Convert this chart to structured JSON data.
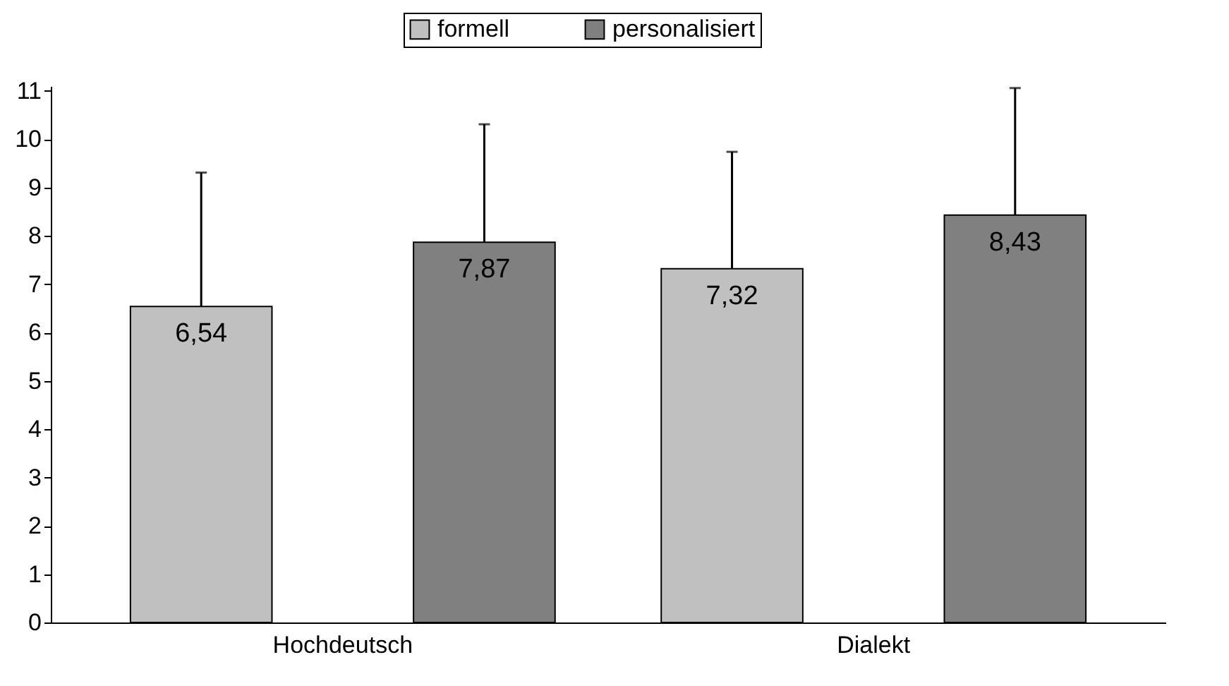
{
  "chart_data": {
    "type": "bar",
    "categories": [
      "Hochdeutsch",
      "Dialekt"
    ],
    "series": [
      {
        "name": "formell",
        "color": "#c0c0c0",
        "values": [
          6.54,
          7.32
        ],
        "value_labels": [
          "6,54",
          "7,32"
        ],
        "errors": [
          [
            6.54,
            9.31
          ],
          [
            7.32,
            9.74
          ]
        ]
      },
      {
        "name": "personalisiert",
        "color": "#808080",
        "values": [
          7.87,
          8.43
        ],
        "value_labels": [
          "7,87",
          "8,43"
        ],
        "errors": [
          [
            7.87,
            10.31
          ],
          [
            8.43,
            11.06
          ]
        ]
      }
    ],
    "ylim": [
      0,
      11.1
    ],
    "yticks": [
      0,
      1,
      2,
      3,
      4,
      5,
      6,
      7,
      8,
      9,
      10,
      11
    ],
    "grid": false,
    "legend": "top"
  }
}
